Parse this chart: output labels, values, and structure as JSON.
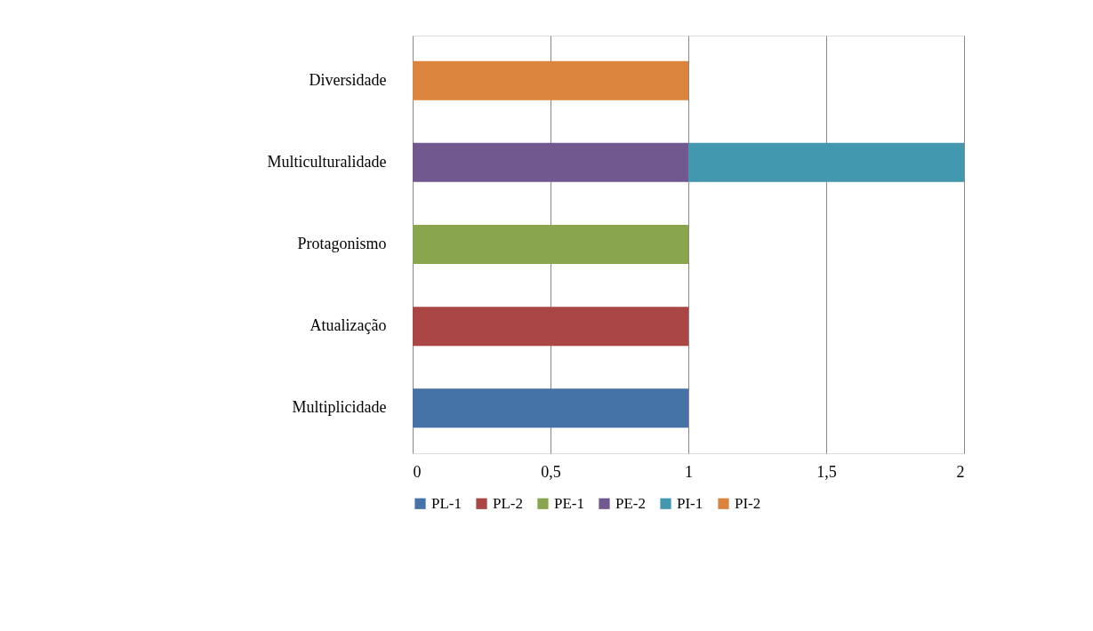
{
  "chart_data": {
    "type": "bar",
    "orientation": "horizontal",
    "stacked": true,
    "categories": [
      "Diversidade",
      "Multiculturalidade",
      "Protagonismo",
      "Atualização",
      "Multiplicidade"
    ],
    "series": [
      {
        "name": "PL-1",
        "color": "#4572a7",
        "values": [
          null,
          null,
          null,
          null,
          1
        ]
      },
      {
        "name": "PL-2",
        "color": "#aa4643",
        "values": [
          null,
          null,
          null,
          1,
          null
        ]
      },
      {
        "name": "PE-1",
        "color": "#89a54e",
        "values": [
          null,
          null,
          1,
          null,
          null
        ]
      },
      {
        "name": "PE-2",
        "color": "#71588f",
        "values": [
          null,
          1,
          null,
          null,
          null
        ]
      },
      {
        "name": "PI-1",
        "color": "#4198af",
        "values": [
          null,
          1,
          null,
          null,
          null
        ]
      },
      {
        "name": "PI-2",
        "color": "#db843d",
        "values": [
          1,
          null,
          null,
          null,
          null
        ]
      }
    ],
    "xlim": [
      0,
      2
    ],
    "xticks": [
      0,
      {
        "value": 0.5,
        "label": "0,5"
      },
      1,
      {
        "value": 1.5,
        "label": "1,5"
      },
      2
    ],
    "grid": "x",
    "legend": "bottom"
  }
}
